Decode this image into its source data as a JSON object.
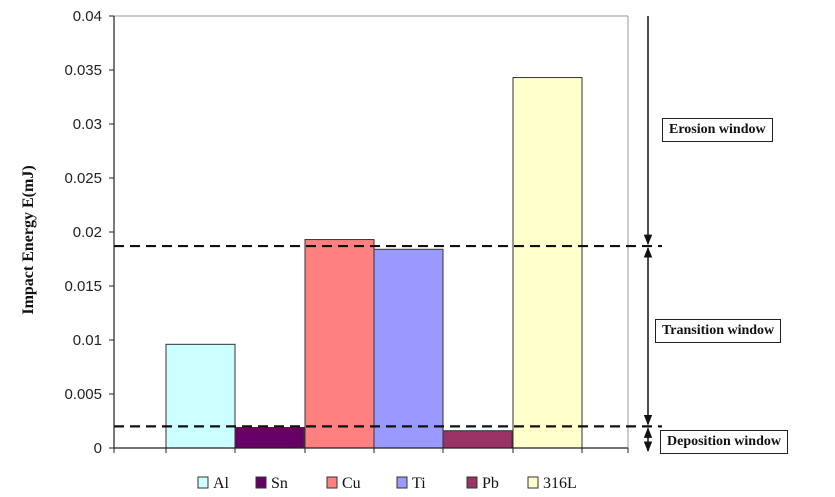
{
  "chart_data": {
    "type": "bar",
    "categories": [
      "Al",
      "Sn",
      "Cu",
      "Ti",
      "Pb",
      "316L"
    ],
    "values": [
      0.0096,
      0.0019,
      0.0193,
      0.0184,
      0.0016,
      0.0343
    ],
    "colors": [
      "#ccffff",
      "#660066",
      "#ff8080",
      "#9999ff",
      "#993366",
      "#ffffcc"
    ],
    "ylabel": "Impact Energy  E(mJ)",
    "ylim": [
      0,
      0.04
    ],
    "yticks": [
      "0",
      "0.005",
      "0.01",
      "0.015",
      "0.02",
      "0.025",
      "0.03",
      "0.035",
      "0.04"
    ],
    "thresholds": [
      0.0187,
      0.002
    ],
    "legend": [
      "Al",
      "Sn",
      "Cu",
      "Ti",
      "Pb",
      "316L"
    ],
    "legend_position": "bottom",
    "grid": false
  },
  "windows": {
    "erosion": "Erosion window",
    "transition": "Transition window",
    "deposition": "Deposition window"
  }
}
